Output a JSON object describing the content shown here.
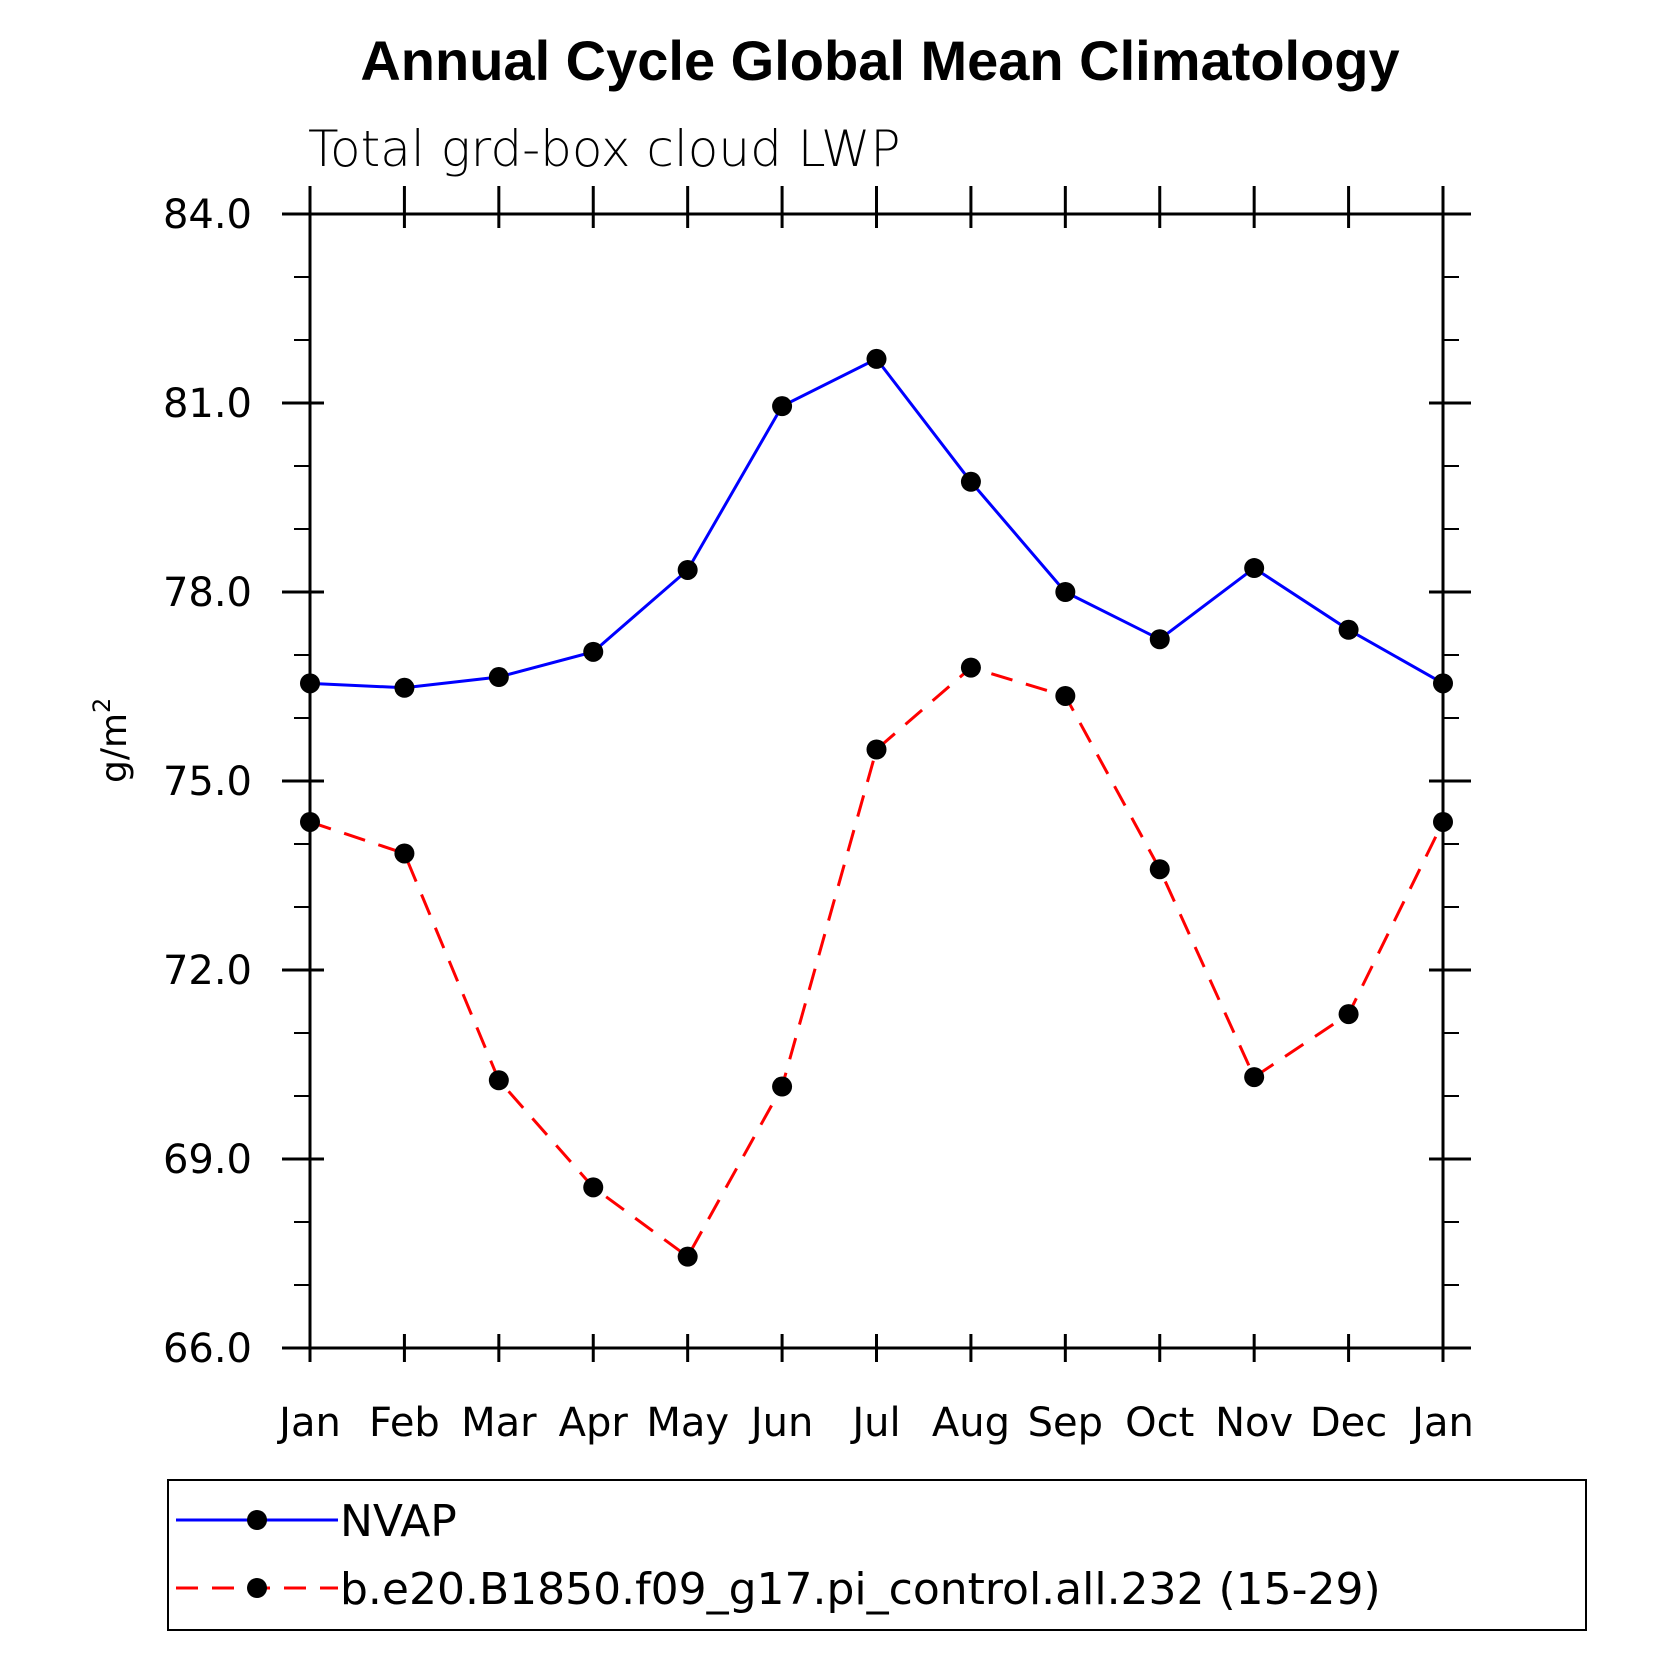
{
  "chart_data": {
    "type": "line",
    "title": "Annual Cycle Global Mean Climatology",
    "subtitle": "Total grd-box cloud LWP",
    "ylabel": "g/m",
    "ylabel_superscript": "2",
    "xlabel": "",
    "categories": [
      "Jan",
      "Feb",
      "Mar",
      "Apr",
      "May",
      "Jun",
      "Jul",
      "Aug",
      "Sep",
      "Oct",
      "Nov",
      "Dec",
      "Jan"
    ],
    "ylim": [
      66.0,
      84.0
    ],
    "yticks": [
      "66.0",
      "69.0",
      "72.0",
      "75.0",
      "78.0",
      "81.0",
      "84.0"
    ],
    "ytick_values": [
      66,
      69,
      72,
      75,
      78,
      81,
      84
    ],
    "grid": false,
    "legend_position": "bottom",
    "series": [
      {
        "name": "NVAP",
        "color": "#0000ff",
        "dash": "solid",
        "marker_color": "#000000",
        "values": [
          76.55,
          76.48,
          76.65,
          77.05,
          78.35,
          80.95,
          81.7,
          79.75,
          78.0,
          77.25,
          78.38,
          77.4,
          76.55
        ]
      },
      {
        "name": "b.e20.B1850.f09_g17.pi_control.all.232 (15-29)",
        "color": "#ff0000",
        "dash": "dashed",
        "marker_color": "#000000",
        "values": [
          74.35,
          73.85,
          70.25,
          68.55,
          67.45,
          70.15,
          75.5,
          76.8,
          76.35,
          73.6,
          70.3,
          71.3,
          74.35
        ]
      }
    ]
  }
}
